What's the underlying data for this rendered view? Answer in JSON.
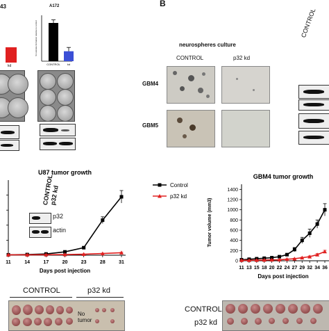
{
  "panels": {
    "b_letter": "B",
    "top_left_fragment": "43",
    "a172_title": "A172",
    "a172_ylabel": "% colonies formation relative to control",
    "a172_cats": [
      "CONTROL",
      "kd"
    ],
    "left_partial_cat": "kd",
    "neuro_title": "neurospheres culture",
    "neuro_cols": [
      "CONTROL",
      "p32 kd"
    ],
    "neuro_rows": [
      "GBM4",
      "GBM5"
    ],
    "right_blot_label": "CONTROL",
    "u87_inset": {
      "col1": "CONTROL",
      "col2": "p32 kd",
      "row1": "p32",
      "row2": "actin"
    },
    "tumor_left_labels": [
      "CONTROL",
      "p32 kd"
    ],
    "no_tumor": "No tumor",
    "tumor_right_labels": [
      "CONTROL",
      "p32 kd"
    ]
  },
  "chart_data": [
    {
      "type": "bar",
      "title": "A172",
      "ylabel": "% colonies formation relative to control",
      "categories": [
        "CONTROL",
        "kd"
      ],
      "values": [
        100,
        26
      ],
      "errors": [
        8,
        10
      ],
      "colors": [
        "#000000",
        "#3b4fd6"
      ],
      "ylim": [
        0,
        120
      ]
    },
    {
      "type": "line",
      "title": "U87 tumor growth",
      "xlabel": "Days post injection",
      "ylabel": "",
      "x": [
        11,
        14,
        17,
        20,
        23,
        28,
        31
      ],
      "series": [
        {
          "name": "Control",
          "color": "#000000",
          "values": [
            5,
            8,
            15,
            40,
            90,
            420,
            700
          ],
          "errors": [
            3,
            4,
            5,
            8,
            15,
            40,
            75
          ]
        },
        {
          "name": "p32 kd",
          "color": "#e02020",
          "values": [
            5,
            5,
            6,
            8,
            12,
            20,
            30
          ],
          "errors": [
            2,
            2,
            2,
            3,
            3,
            4,
            5
          ]
        }
      ],
      "ylim": [
        0,
        900
      ],
      "legend": "top-right"
    },
    {
      "type": "line",
      "title": "GBM4 tumor growth",
      "xlabel": "Days post injection",
      "ylabel": "Tumor volume (mm3)",
      "x": [
        11,
        13,
        15,
        18,
        20,
        22,
        24,
        27,
        29,
        32,
        34,
        36
      ],
      "series": [
        {
          "name": "Control",
          "color": "#000000",
          "values": [
            20,
            30,
            40,
            50,
            60,
            80,
            120,
            220,
            400,
            540,
            720,
            1000
          ],
          "errors": [
            10,
            10,
            15,
            15,
            15,
            20,
            25,
            40,
            60,
            80,
            80,
            120
          ]
        },
        {
          "name": "p32 kd",
          "color": "#e02020",
          "values": [
            10,
            10,
            12,
            15,
            18,
            20,
            30,
            40,
            60,
            80,
            120,
            180
          ],
          "errors": [
            5,
            5,
            5,
            5,
            5,
            8,
            8,
            10,
            10,
            15,
            20,
            25
          ]
        }
      ],
      "yticks": [
        0,
        200,
        400,
        600,
        800,
        1000,
        1200,
        1400
      ],
      "ylim": [
        0,
        1500
      ]
    }
  ]
}
